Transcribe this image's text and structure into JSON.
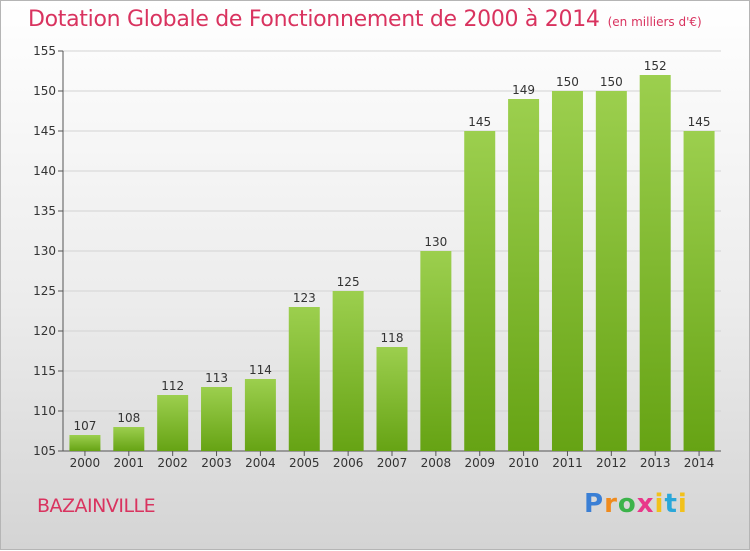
{
  "title": "Dotation Globale de Fonctionnement de 2000 à 2014",
  "unit_note": "(en milliers d'€)",
  "commune": "BAZAINVILLE",
  "logo": "Proxiti",
  "colors": {
    "bar_top": "#9ccf4e",
    "bar_bottom": "#66a314",
    "title": "#d9335f"
  },
  "chart_data": {
    "type": "bar",
    "title": "Dotation Globale de Fonctionnement de 2000 à 2014",
    "subtitle": "(en milliers d'€)",
    "categories": [
      "2000",
      "2001",
      "2002",
      "2003",
      "2004",
      "2005",
      "2006",
      "2007",
      "2008",
      "2009",
      "2010",
      "2011",
      "2012",
      "2013",
      "2014"
    ],
    "values": [
      107,
      108,
      112,
      113,
      114,
      123,
      125,
      118,
      130,
      145,
      149,
      150,
      150,
      152,
      145
    ],
    "ylim": [
      105,
      155
    ],
    "yticks": [
      105,
      110,
      115,
      120,
      125,
      130,
      135,
      140,
      145,
      150,
      155
    ],
    "grid": true,
    "data_labels": true
  }
}
